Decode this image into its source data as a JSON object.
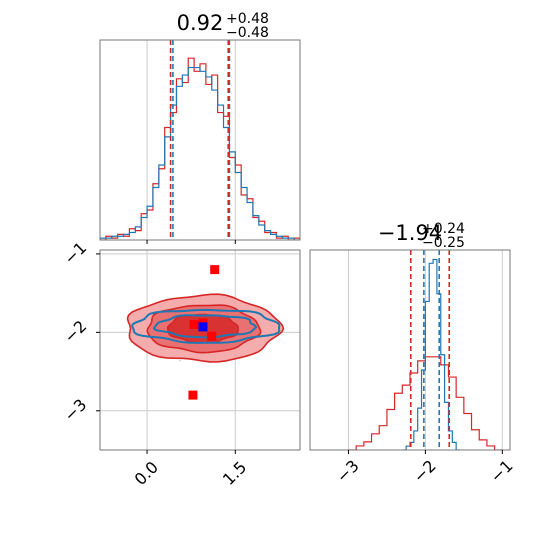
{
  "colors": {
    "blue": "#1f77b4",
    "red": "#d62728",
    "red_light": "#f4a3a3",
    "red_mid": "#e86a6a",
    "grid": "#cccccc",
    "frame": "#777777"
  },
  "chart_data": [
    {
      "type": "histogram",
      "panel": "marginal-param-1",
      "title": {
        "value": "0.92",
        "upper": "+0.48",
        "lower": "−0.48"
      },
      "xlim": [
        -0.8,
        2.6
      ],
      "grid": true,
      "series": [
        {
          "color": "#1f77b4",
          "quantiles": [
            0.44,
            0.92,
            1.4
          ],
          "bins": {
            "x": [
              -0.8,
              -0.7,
              -0.6,
              -0.5,
              -0.4,
              -0.3,
              -0.2,
              -0.1,
              0.0,
              0.1,
              0.2,
              0.3,
              0.4,
              0.5,
              0.6,
              0.7,
              0.8,
              0.9,
              1.0,
              1.1,
              1.2,
              1.3,
              1.4,
              1.5,
              1.6,
              1.7,
              1.8,
              1.9,
              2.0,
              2.1,
              2.2,
              2.3,
              2.4,
              2.5
            ],
            "y": [
              1,
              1,
              2,
              2,
              3,
              4,
              7,
              12,
              18,
              28,
              40,
              55,
              72,
              82,
              88,
              92,
              92,
              90,
              87,
              80,
              72,
              60,
              47,
              36,
              28,
              20,
              13,
              8,
              5,
              3,
              2,
              1,
              1,
              0
            ]
          }
        },
        {
          "color": "#d62728",
          "quantiles": [
            0.4,
            0.92,
            1.38
          ],
          "bins": {
            "x": [
              -0.8,
              -0.7,
              -0.6,
              -0.5,
              -0.4,
              -0.3,
              -0.2,
              -0.1,
              0.0,
              0.1,
              0.2,
              0.3,
              0.4,
              0.5,
              0.6,
              0.7,
              0.8,
              0.9,
              1.0,
              1.1,
              1.2,
              1.3,
              1.4,
              1.5,
              1.6,
              1.7,
              1.8,
              1.9,
              2.0,
              2.1,
              2.2,
              2.3,
              2.4,
              2.5
            ],
            "y": [
              0,
              2,
              1,
              3,
              2,
              6,
              5,
              14,
              16,
              30,
              38,
              60,
              68,
              86,
              84,
              97,
              90,
              94,
              83,
              88,
              68,
              66,
              44,
              40,
              24,
              22,
              12,
              10,
              4,
              4,
              1,
              2,
              0,
              1
            ]
          }
        }
      ]
    },
    {
      "type": "histogram",
      "panel": "marginal-param-2",
      "title": {
        "value": "−1.94",
        "upper": "+0.24",
        "lower": "−0.25"
      },
      "xlim": [
        -3.5,
        -0.9
      ],
      "xticks": [
        -3,
        -2,
        -1
      ],
      "xticklabels": [
        "−3",
        "−2",
        "−1"
      ],
      "grid": true,
      "series": [
        {
          "color": "#1f77b4",
          "quantiles": [
            -2.02,
            -1.94,
            -1.82
          ],
          "bins": {
            "x": [
              -2.3,
              -2.25,
              -2.2,
              -2.15,
              -2.1,
              -2.05,
              -2.0,
              -1.95,
              -1.9,
              -1.85,
              -1.8,
              -1.75,
              -1.7,
              -1.65,
              -1.6
            ],
            "y": [
              0,
              2,
              4,
              10,
              22,
              42,
              78,
              98,
              100,
              82,
              50,
              25,
              10,
              4,
              0
            ]
          }
        },
        {
          "color": "#d62728",
          "quantiles": [
            -2.19,
            -1.94,
            -1.69
          ],
          "bins": {
            "x": [
              -3.0,
              -2.9,
              -2.8,
              -2.7,
              -2.6,
              -2.5,
              -2.4,
              -2.3,
              -2.2,
              -2.1,
              -2.0,
              -1.9,
              -1.8,
              -1.7,
              -1.6,
              -1.5,
              -1.4,
              -1.3,
              -1.2,
              -1.1
            ],
            "y": [
              0,
              2,
              4,
              8,
              12,
              20,
              28,
              32,
              38,
              44,
              46,
              46,
              42,
              36,
              26,
              18,
              10,
              5,
              2,
              0
            ]
          }
        }
      ]
    },
    {
      "type": "scatter",
      "panel": "joint-param-1-param-2",
      "xlim": [
        -0.8,
        2.6
      ],
      "ylim": [
        -3.5,
        -0.95
      ],
      "xticks": [
        0.0,
        1.5
      ],
      "xticklabels": [
        "0.0",
        "1.5"
      ],
      "yticks": [
        -1,
        -2,
        -3
      ],
      "yticklabels": [
        "−1",
        "−2",
        "−3"
      ],
      "grid": true,
      "contours": [
        {
          "color": "#d62728",
          "center": [
            0.95,
            -1.95
          ],
          "levels": [
            [
              1.3,
              0.42
            ],
            [
              0.95,
              0.3
            ],
            [
              0.6,
              0.18
            ]
          ]
        },
        {
          "color": "#1f77b4",
          "center": [
            1.0,
            -1.92
          ],
          "levels": [
            [
              1.25,
              0.21
            ],
            [
              0.85,
              0.14
            ]
          ]
        }
      ],
      "points": [
        {
          "x": 1.15,
          "y": -1.2,
          "color": "#ff0000"
        },
        {
          "x": 0.8,
          "y": -1.9,
          "color": "#ff0000"
        },
        {
          "x": 0.95,
          "y": -1.88,
          "color": "#ff0000"
        },
        {
          "x": 1.1,
          "y": -2.05,
          "color": "#ff0000"
        },
        {
          "x": 0.78,
          "y": -2.8,
          "color": "#ff0000"
        },
        {
          "x": 0.95,
          "y": -1.93,
          "color": "#0000ff"
        }
      ]
    }
  ]
}
